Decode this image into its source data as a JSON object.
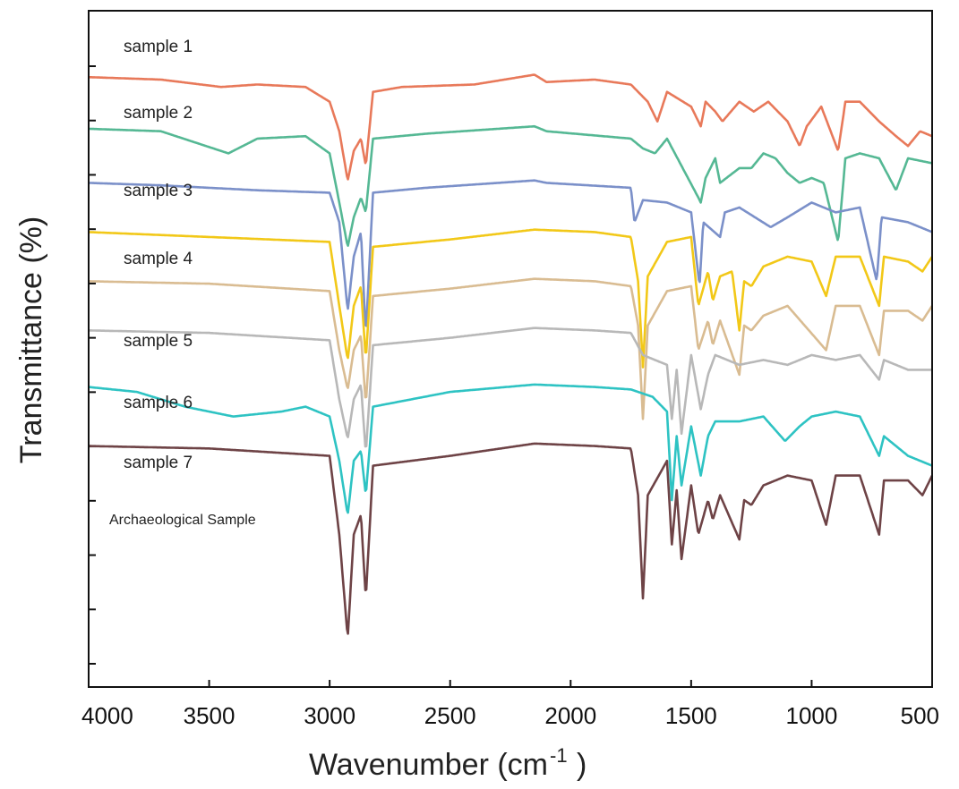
{
  "chart_data": {
    "type": "line",
    "xlabel": "Wavenumber (cm",
    "xlabel_sup": "-1",
    "xlabel_close": ")",
    "ylabel": "Transmittance (%)",
    "xlim": [
      4000,
      500
    ],
    "x_reversed": true,
    "x_ticks": [
      "4000",
      "3500",
      "3000",
      "2500",
      "2000",
      "1500",
      "1000",
      "500"
    ],
    "y_ticks_count": 12,
    "grid": false,
    "legend": "inline labels",
    "series": [
      {
        "name": "sample 1",
        "color": "#e8795a",
        "baseline": 0.93,
        "points": [
          [
            4000,
            0
          ],
          [
            3700,
            -0.01
          ],
          [
            3450,
            -0.04
          ],
          [
            3300,
            -0.03
          ],
          [
            3100,
            -0.04
          ],
          [
            3000,
            -0.1
          ],
          [
            2960,
            -0.22
          ],
          [
            2925,
            -0.42
          ],
          [
            2900,
            -0.3
          ],
          [
            2870,
            -0.25
          ],
          [
            2850,
            -0.36
          ],
          [
            2820,
            -0.06
          ],
          [
            2700,
            -0.04
          ],
          [
            2400,
            -0.03
          ],
          [
            2150,
            0.01
          ],
          [
            2100,
            -0.02
          ],
          [
            1900,
            -0.01
          ],
          [
            1750,
            -0.03
          ],
          [
            1680,
            -0.1
          ],
          [
            1640,
            -0.18
          ],
          [
            1600,
            -0.06
          ],
          [
            1500,
            -0.12
          ],
          [
            1460,
            -0.2
          ],
          [
            1440,
            -0.1
          ],
          [
            1400,
            -0.14
          ],
          [
            1370,
            -0.18
          ],
          [
            1300,
            -0.1
          ],
          [
            1240,
            -0.14
          ],
          [
            1180,
            -0.1
          ],
          [
            1100,
            -0.18
          ],
          [
            1050,
            -0.28
          ],
          [
            1020,
            -0.2
          ],
          [
            960,
            -0.12
          ],
          [
            890,
            -0.3
          ],
          [
            860,
            -0.1
          ],
          [
            800,
            -0.1
          ],
          [
            720,
            -0.18
          ],
          [
            650,
            -0.24
          ],
          [
            600,
            -0.28
          ],
          [
            550,
            -0.22
          ],
          [
            500,
            -0.24
          ]
        ]
      },
      {
        "name": "sample 2",
        "color": "#55b894",
        "baseline": 0.72,
        "points": [
          [
            4000,
            0
          ],
          [
            3700,
            -0.01
          ],
          [
            3420,
            -0.1
          ],
          [
            3300,
            -0.04
          ],
          [
            3100,
            -0.03
          ],
          [
            3000,
            -0.1
          ],
          [
            2960,
            -0.3
          ],
          [
            2925,
            -0.48
          ],
          [
            2900,
            -0.36
          ],
          [
            2870,
            -0.28
          ],
          [
            2850,
            -0.34
          ],
          [
            2820,
            -0.04
          ],
          [
            2600,
            -0.02
          ],
          [
            2150,
            0.01
          ],
          [
            2100,
            -0.01
          ],
          [
            1750,
            -0.04
          ],
          [
            1700,
            -0.08
          ],
          [
            1650,
            -0.1
          ],
          [
            1600,
            -0.04
          ],
          [
            1470,
            -0.28
          ],
          [
            1460,
            -0.3
          ],
          [
            1440,
            -0.2
          ],
          [
            1400,
            -0.12
          ],
          [
            1380,
            -0.22
          ],
          [
            1300,
            -0.16
          ],
          [
            1250,
            -0.16
          ],
          [
            1200,
            -0.1
          ],
          [
            1150,
            -0.12
          ],
          [
            1100,
            -0.18
          ],
          [
            1050,
            -0.22
          ],
          [
            1000,
            -0.2
          ],
          [
            950,
            -0.22
          ],
          [
            890,
            -0.46
          ],
          [
            860,
            -0.12
          ],
          [
            800,
            -0.1
          ],
          [
            720,
            -0.12
          ],
          [
            650,
            -0.25
          ],
          [
            600,
            -0.12
          ],
          [
            500,
            -0.14
          ]
        ]
      },
      {
        "name": "sample 3",
        "color": "#7b90c9",
        "baseline": 0.5,
        "points": [
          [
            4000,
            0
          ],
          [
            3700,
            -0.01
          ],
          [
            3300,
            -0.03
          ],
          [
            3000,
            -0.04
          ],
          [
            2960,
            -0.16
          ],
          [
            2925,
            -0.52
          ],
          [
            2900,
            -0.3
          ],
          [
            2870,
            -0.2
          ],
          [
            2850,
            -0.62
          ],
          [
            2820,
            -0.04
          ],
          [
            2600,
            -0.02
          ],
          [
            2150,
            0.01
          ],
          [
            2100,
            0.0
          ],
          [
            1750,
            -0.02
          ],
          [
            1735,
            -0.16
          ],
          [
            1700,
            -0.07
          ],
          [
            1600,
            -0.08
          ],
          [
            1500,
            -0.12
          ],
          [
            1465,
            -0.42
          ],
          [
            1450,
            -0.16
          ],
          [
            1380,
            -0.22
          ],
          [
            1360,
            -0.12
          ],
          [
            1300,
            -0.1
          ],
          [
            1170,
            -0.18
          ],
          [
            1100,
            -0.14
          ],
          [
            1000,
            -0.08
          ],
          [
            900,
            -0.12
          ],
          [
            800,
            -0.1
          ],
          [
            730,
            -0.4
          ],
          [
            710,
            -0.14
          ],
          [
            600,
            -0.16
          ],
          [
            500,
            -0.2
          ]
        ]
      },
      {
        "name": "sample 4",
        "color": "#f2c818",
        "baseline": 0.3,
        "points": [
          [
            4000,
            0
          ],
          [
            3500,
            -0.02
          ],
          [
            3000,
            -0.04
          ],
          [
            2960,
            -0.3
          ],
          [
            2925,
            -0.52
          ],
          [
            2900,
            -0.3
          ],
          [
            2870,
            -0.22
          ],
          [
            2850,
            -0.52
          ],
          [
            2820,
            -0.06
          ],
          [
            2500,
            -0.03
          ],
          [
            2150,
            0.01
          ],
          [
            1900,
            0.0
          ],
          [
            1750,
            -0.02
          ],
          [
            1720,
            -0.2
          ],
          [
            1700,
            -0.55
          ],
          [
            1680,
            -0.18
          ],
          [
            1600,
            -0.04
          ],
          [
            1500,
            -0.02
          ],
          [
            1470,
            -0.3
          ],
          [
            1430,
            -0.16
          ],
          [
            1410,
            -0.28
          ],
          [
            1380,
            -0.18
          ],
          [
            1330,
            -0.16
          ],
          [
            1300,
            -0.4
          ],
          [
            1280,
            -0.2
          ],
          [
            1250,
            -0.22
          ],
          [
            1200,
            -0.14
          ],
          [
            1100,
            -0.1
          ],
          [
            1000,
            -0.12
          ],
          [
            940,
            -0.26
          ],
          [
            900,
            -0.1
          ],
          [
            800,
            -0.1
          ],
          [
            720,
            -0.3
          ],
          [
            700,
            -0.1
          ],
          [
            600,
            -0.12
          ],
          [
            540,
            -0.16
          ],
          [
            500,
            -0.1
          ]
        ]
      },
      {
        "name": "sample 5",
        "color": "#d9bc92",
        "baseline": 0.1,
        "points": [
          [
            4000,
            0
          ],
          [
            3500,
            -0.01
          ],
          [
            3000,
            -0.04
          ],
          [
            2960,
            -0.28
          ],
          [
            2925,
            -0.44
          ],
          [
            2900,
            -0.28
          ],
          [
            2870,
            -0.22
          ],
          [
            2850,
            -0.5
          ],
          [
            2820,
            -0.06
          ],
          [
            2500,
            -0.03
          ],
          [
            2150,
            0.01
          ],
          [
            1900,
            0.0
          ],
          [
            1750,
            -0.02
          ],
          [
            1720,
            -0.18
          ],
          [
            1700,
            -0.56
          ],
          [
            1680,
            -0.18
          ],
          [
            1600,
            -0.04
          ],
          [
            1500,
            -0.02
          ],
          [
            1470,
            -0.28
          ],
          [
            1430,
            -0.16
          ],
          [
            1410,
            -0.26
          ],
          [
            1380,
            -0.16
          ],
          [
            1300,
            -0.38
          ],
          [
            1280,
            -0.18
          ],
          [
            1250,
            -0.2
          ],
          [
            1200,
            -0.14
          ],
          [
            1100,
            -0.1
          ],
          [
            940,
            -0.28
          ],
          [
            900,
            -0.1
          ],
          [
            800,
            -0.1
          ],
          [
            720,
            -0.3
          ],
          [
            700,
            -0.12
          ],
          [
            600,
            -0.12
          ],
          [
            540,
            -0.16
          ],
          [
            500,
            -0.1
          ]
        ]
      },
      {
        "name": "sample 6",
        "color": "#b8b8b8",
        "baseline": -0.1,
        "points": [
          [
            4000,
            0
          ],
          [
            3500,
            -0.01
          ],
          [
            3000,
            -0.04
          ],
          [
            2960,
            -0.28
          ],
          [
            2925,
            -0.44
          ],
          [
            2900,
            -0.28
          ],
          [
            2870,
            -0.22
          ],
          [
            2850,
            -0.5
          ],
          [
            2820,
            -0.06
          ],
          [
            2500,
            -0.03
          ],
          [
            2150,
            0.01
          ],
          [
            1900,
            0.0
          ],
          [
            1750,
            -0.01
          ],
          [
            1700,
            -0.1
          ],
          [
            1600,
            -0.14
          ],
          [
            1580,
            -0.36
          ],
          [
            1560,
            -0.16
          ],
          [
            1540,
            -0.42
          ],
          [
            1500,
            -0.1
          ],
          [
            1460,
            -0.32
          ],
          [
            1430,
            -0.18
          ],
          [
            1400,
            -0.1
          ],
          [
            1300,
            -0.14
          ],
          [
            1200,
            -0.12
          ],
          [
            1100,
            -0.14
          ],
          [
            1000,
            -0.1
          ],
          [
            900,
            -0.12
          ],
          [
            800,
            -0.1
          ],
          [
            720,
            -0.2
          ],
          [
            700,
            -0.12
          ],
          [
            600,
            -0.16
          ],
          [
            500,
            -0.16
          ]
        ]
      },
      {
        "name": "sample 7",
        "color": "#2ec3c3",
        "baseline": -0.33,
        "points": [
          [
            4000,
            0
          ],
          [
            3800,
            -0.02
          ],
          [
            3600,
            -0.08
          ],
          [
            3400,
            -0.12
          ],
          [
            3200,
            -0.1
          ],
          [
            3100,
            -0.08
          ],
          [
            3000,
            -0.12
          ],
          [
            2960,
            -0.3
          ],
          [
            2925,
            -0.52
          ],
          [
            2900,
            -0.3
          ],
          [
            2870,
            -0.26
          ],
          [
            2850,
            -0.44
          ],
          [
            2820,
            -0.08
          ],
          [
            2500,
            -0.02
          ],
          [
            2150,
            0.01
          ],
          [
            1900,
            0.0
          ],
          [
            1750,
            -0.01
          ],
          [
            1660,
            -0.04
          ],
          [
            1600,
            -0.1
          ],
          [
            1580,
            -0.46
          ],
          [
            1560,
            -0.2
          ],
          [
            1540,
            -0.4
          ],
          [
            1500,
            -0.16
          ],
          [
            1460,
            -0.36
          ],
          [
            1430,
            -0.2
          ],
          [
            1400,
            -0.14
          ],
          [
            1300,
            -0.14
          ],
          [
            1200,
            -0.12
          ],
          [
            1110,
            -0.22
          ],
          [
            1050,
            -0.16
          ],
          [
            1000,
            -0.12
          ],
          [
            900,
            -0.1
          ],
          [
            800,
            -0.12
          ],
          [
            720,
            -0.28
          ],
          [
            700,
            -0.2
          ],
          [
            600,
            -0.28
          ],
          [
            500,
            -0.32
          ]
        ]
      },
      {
        "name": "Archaeological Sample",
        "color": "#6e4346",
        "baseline": -0.57,
        "points": [
          [
            4000,
            0
          ],
          [
            3500,
            -0.01
          ],
          [
            3000,
            -0.04
          ],
          [
            2960,
            -0.36
          ],
          [
            2925,
            -0.78
          ],
          [
            2900,
            -0.36
          ],
          [
            2870,
            -0.28
          ],
          [
            2850,
            -0.62
          ],
          [
            2820,
            -0.08
          ],
          [
            2500,
            -0.04
          ],
          [
            2150,
            0.01
          ],
          [
            1900,
            0.0
          ],
          [
            1750,
            -0.01
          ],
          [
            1720,
            -0.2
          ],
          [
            1700,
            -0.62
          ],
          [
            1680,
            -0.2
          ],
          [
            1600,
            -0.06
          ],
          [
            1580,
            -0.4
          ],
          [
            1560,
            -0.18
          ],
          [
            1540,
            -0.46
          ],
          [
            1500,
            -0.16
          ],
          [
            1470,
            -0.36
          ],
          [
            1430,
            -0.22
          ],
          [
            1410,
            -0.3
          ],
          [
            1380,
            -0.2
          ],
          [
            1300,
            -0.38
          ],
          [
            1280,
            -0.22
          ],
          [
            1250,
            -0.24
          ],
          [
            1200,
            -0.16
          ],
          [
            1100,
            -0.12
          ],
          [
            1000,
            -0.14
          ],
          [
            940,
            -0.32
          ],
          [
            900,
            -0.12
          ],
          [
            800,
            -0.12
          ],
          [
            720,
            -0.36
          ],
          [
            700,
            -0.14
          ],
          [
            600,
            -0.14
          ],
          [
            540,
            -0.2
          ],
          [
            500,
            -0.12
          ]
        ]
      }
    ]
  }
}
